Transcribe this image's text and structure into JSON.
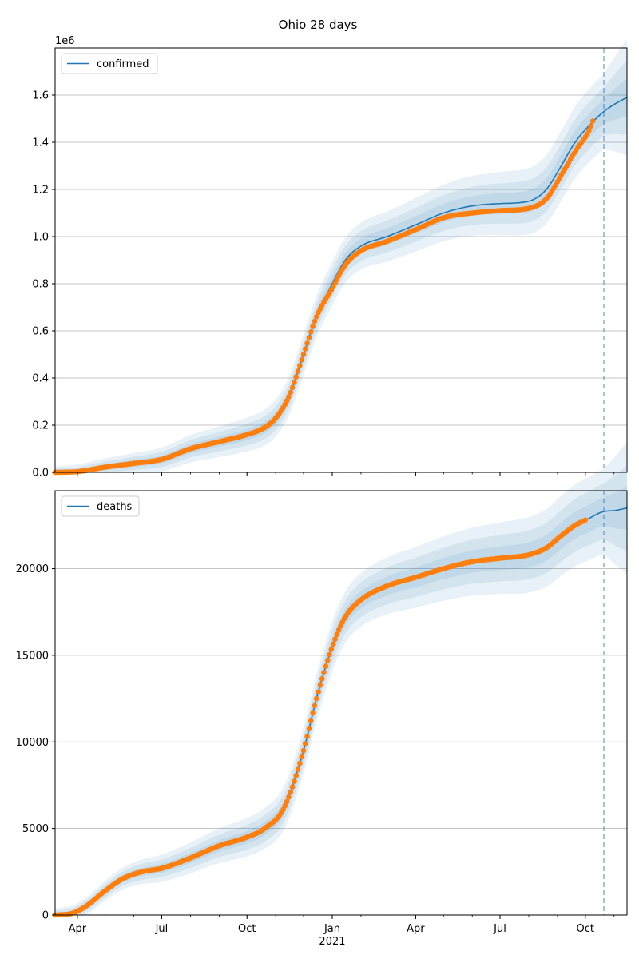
{
  "figure": {
    "title": "Ohio 28 days"
  },
  "x_axis": {
    "range": [
      "2020-03-08",
      "2021-11-15"
    ],
    "major_ticks": [
      {
        "date": "2020-04-01",
        "label": "Apr"
      },
      {
        "date": "2020-07-01",
        "label": "Jul"
      },
      {
        "date": "2020-10-01",
        "label": "Oct"
      },
      {
        "date": "2021-01-01",
        "label": "Jan"
      },
      {
        "date": "2021-04-01",
        "label": "Apr"
      },
      {
        "date": "2021-07-01",
        "label": "Jul"
      },
      {
        "date": "2021-10-01",
        "label": "Oct"
      }
    ],
    "year_label": "2021",
    "minor_ticks": "monthly",
    "forecast_line_date": "2021-10-21"
  },
  "colors": {
    "model": "#1f77b4",
    "observed": "#ff7f0e",
    "band": "#1f77b4",
    "grid": "#b0b0b0"
  },
  "chart_data": [
    {
      "type": "line",
      "legend": "confirmed",
      "legend_position": "top-left",
      "multiplier_label": "1e6",
      "ylim": [
        0,
        1.8
      ],
      "yticks": [
        "0.0",
        "0.2",
        "0.4",
        "0.6",
        "0.8",
        "1.0",
        "1.2",
        "1.4",
        "1.6"
      ],
      "ytick_values": [
        0,
        0.2,
        0.4,
        0.6,
        0.8,
        1.0,
        1.2,
        1.4,
        1.6
      ],
      "grid": "horizontal",
      "model": {
        "x": [
          "2020-03-08",
          "2020-04-01",
          "2020-05-01",
          "2020-06-01",
          "2020-07-01",
          "2020-08-01",
          "2020-09-01",
          "2020-10-01",
          "2020-10-20",
          "2020-11-01",
          "2020-11-15",
          "2020-12-01",
          "2020-12-15",
          "2021-01-01",
          "2021-01-15",
          "2021-02-01",
          "2021-03-01",
          "2021-04-01",
          "2021-05-01",
          "2021-06-01",
          "2021-07-01",
          "2021-08-01",
          "2021-08-20",
          "2021-09-05",
          "2021-09-20",
          "2021-10-05",
          "2021-10-21",
          "2021-11-01",
          "2021-11-15"
        ],
        "y": [
          0.0,
          0.003,
          0.022,
          0.038,
          0.055,
          0.1,
          0.13,
          0.16,
          0.19,
          0.23,
          0.32,
          0.5,
          0.66,
          0.8,
          0.9,
          0.96,
          1.0,
          1.05,
          1.1,
          1.13,
          1.14,
          1.15,
          1.2,
          1.3,
          1.4,
          1.47,
          1.53,
          1.56,
          1.59
        ],
        "band_widths": [
          0.018,
          0.035,
          0.055
        ]
      },
      "observed": {
        "x": [
          "2020-03-08",
          "2020-04-01",
          "2020-05-01",
          "2020-06-01",
          "2020-07-01",
          "2020-08-01",
          "2020-09-01",
          "2020-10-01",
          "2020-10-20",
          "2020-11-01",
          "2020-11-15",
          "2020-12-01",
          "2020-12-15",
          "2021-01-01",
          "2021-01-15",
          "2021-02-01",
          "2021-03-01",
          "2021-04-01",
          "2021-05-01",
          "2021-06-01",
          "2021-07-01",
          "2021-08-01",
          "2021-08-20",
          "2021-09-05",
          "2021-09-20",
          "2021-10-05",
          "2021-10-10"
        ],
        "y": [
          0.0,
          0.003,
          0.022,
          0.038,
          0.055,
          0.1,
          0.13,
          0.16,
          0.19,
          0.23,
          0.32,
          0.5,
          0.66,
          0.78,
          0.88,
          0.94,
          0.98,
          1.03,
          1.08,
          1.1,
          1.11,
          1.12,
          1.16,
          1.26,
          1.36,
          1.45,
          1.5
        ]
      }
    },
    {
      "type": "line",
      "legend": "deaths",
      "legend_position": "top-left",
      "ylim": [
        0,
        24500
      ],
      "yticks": [
        "0",
        "5000",
        "10000",
        "15000",
        "20000"
      ],
      "ytick_values": [
        0,
        5000,
        10000,
        15000,
        20000
      ],
      "grid": "horizontal",
      "model": {
        "x": [
          "2020-03-08",
          "2020-03-25",
          "2020-04-10",
          "2020-05-01",
          "2020-05-20",
          "2020-06-10",
          "2020-07-01",
          "2020-08-01",
          "2020-09-01",
          "2020-10-01",
          "2020-10-20",
          "2020-11-10",
          "2020-12-01",
          "2020-12-15",
          "2021-01-01",
          "2021-01-15",
          "2021-02-01",
          "2021-03-01",
          "2021-04-01",
          "2021-05-01",
          "2021-06-01",
          "2021-07-01",
          "2021-08-01",
          "2021-08-20",
          "2021-09-05",
          "2021-09-20",
          "2021-10-05",
          "2021-10-21",
          "2021-11-01",
          "2021-11-15"
        ],
        "y": [
          0,
          80,
          500,
          1400,
          2100,
          2500,
          2700,
          3300,
          4000,
          4500,
          5000,
          6200,
          9500,
          12500,
          15500,
          17200,
          18200,
          19000,
          19500,
          20000,
          20400,
          20600,
          20800,
          21200,
          21900,
          22500,
          22900,
          23300,
          23350,
          23500
        ],
        "band_widths": [
          280,
          550,
          850
        ]
      },
      "observed": {
        "x": [
          "2020-03-08",
          "2020-03-25",
          "2020-04-10",
          "2020-05-01",
          "2020-05-20",
          "2020-06-10",
          "2020-07-01",
          "2020-08-01",
          "2020-09-01",
          "2020-10-01",
          "2020-10-20",
          "2020-11-10",
          "2020-12-01",
          "2020-12-15",
          "2021-01-01",
          "2021-01-15",
          "2021-02-01",
          "2021-03-01",
          "2021-04-01",
          "2021-05-01",
          "2021-06-01",
          "2021-07-01",
          "2021-08-01",
          "2021-08-20",
          "2021-09-05",
          "2021-09-20",
          "2021-10-01"
        ],
        "y": [
          0,
          80,
          500,
          1400,
          2100,
          2500,
          2700,
          3300,
          4000,
          4500,
          5000,
          6200,
          9500,
          12500,
          15500,
          17200,
          18200,
          19000,
          19500,
          20000,
          20400,
          20600,
          20800,
          21200,
          21900,
          22500,
          22800
        ]
      }
    }
  ]
}
